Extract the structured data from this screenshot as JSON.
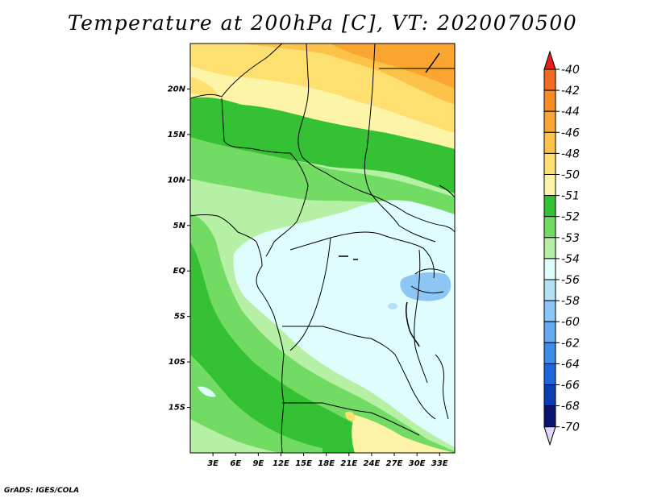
{
  "title": "Temperature at 200hPa [C], VT: 2020070500",
  "credit": "GrADS: IGES/COLA",
  "map": {
    "lon_range": [
      0,
      35
    ],
    "lat_range": [
      -20,
      25
    ],
    "lon_ticks": [
      {
        "value": 3,
        "label": "3E"
      },
      {
        "value": 6,
        "label": "6E"
      },
      {
        "value": 9,
        "label": "9E"
      },
      {
        "value": 12,
        "label": "12E"
      },
      {
        "value": 15,
        "label": "15E"
      },
      {
        "value": 18,
        "label": "18E"
      },
      {
        "value": 21,
        "label": "21E"
      },
      {
        "value": 24,
        "label": "24E"
      },
      {
        "value": 27,
        "label": "27E"
      },
      {
        "value": 30,
        "label": "30E"
      },
      {
        "value": 33,
        "label": "33E"
      }
    ],
    "lat_ticks": [
      {
        "value": 20,
        "label": "20N"
      },
      {
        "value": 15,
        "label": "15N"
      },
      {
        "value": 10,
        "label": "10N"
      },
      {
        "value": 5,
        "label": "5N"
      },
      {
        "value": 0,
        "label": "EQ"
      },
      {
        "value": -5,
        "label": "5S"
      },
      {
        "value": -10,
        "label": "10S"
      },
      {
        "value": -15,
        "label": "15S"
      }
    ]
  },
  "colorbar": {
    "levels": [
      {
        "label": "-40",
        "color": "#f0481c"
      },
      {
        "label": "-42",
        "color": "#f56a1e"
      },
      {
        "label": "-44",
        "color": "#f78c22"
      },
      {
        "label": "-46",
        "color": "#faa530"
      },
      {
        "label": "-48",
        "color": "#fcc348"
      },
      {
        "label": "-50",
        "color": "#fde070"
      },
      {
        "label": "-51",
        "color": "#fdf4a8"
      },
      {
        "label": "-52",
        "color": "#34c234"
      },
      {
        "label": "-53",
        "color": "#72db64"
      },
      {
        "label": "-54",
        "color": "#b6f0a4"
      },
      {
        "label": "-56",
        "color": "#e0fdfd"
      },
      {
        "label": "-58",
        "color": "#b4e0f6"
      },
      {
        "label": "-60",
        "color": "#8cc6f4"
      },
      {
        "label": "-62",
        "color": "#64aaf0"
      },
      {
        "label": "-64",
        "color": "#3c8ce8"
      },
      {
        "label": "-66",
        "color": "#1e64dc"
      },
      {
        "label": "-68",
        "color": "#0a3cb4"
      },
      {
        "label": "-70",
        "color": "#0a146e"
      }
    ],
    "top_color": "#e61e1e",
    "bottom_color": "#e0d8f8"
  }
}
